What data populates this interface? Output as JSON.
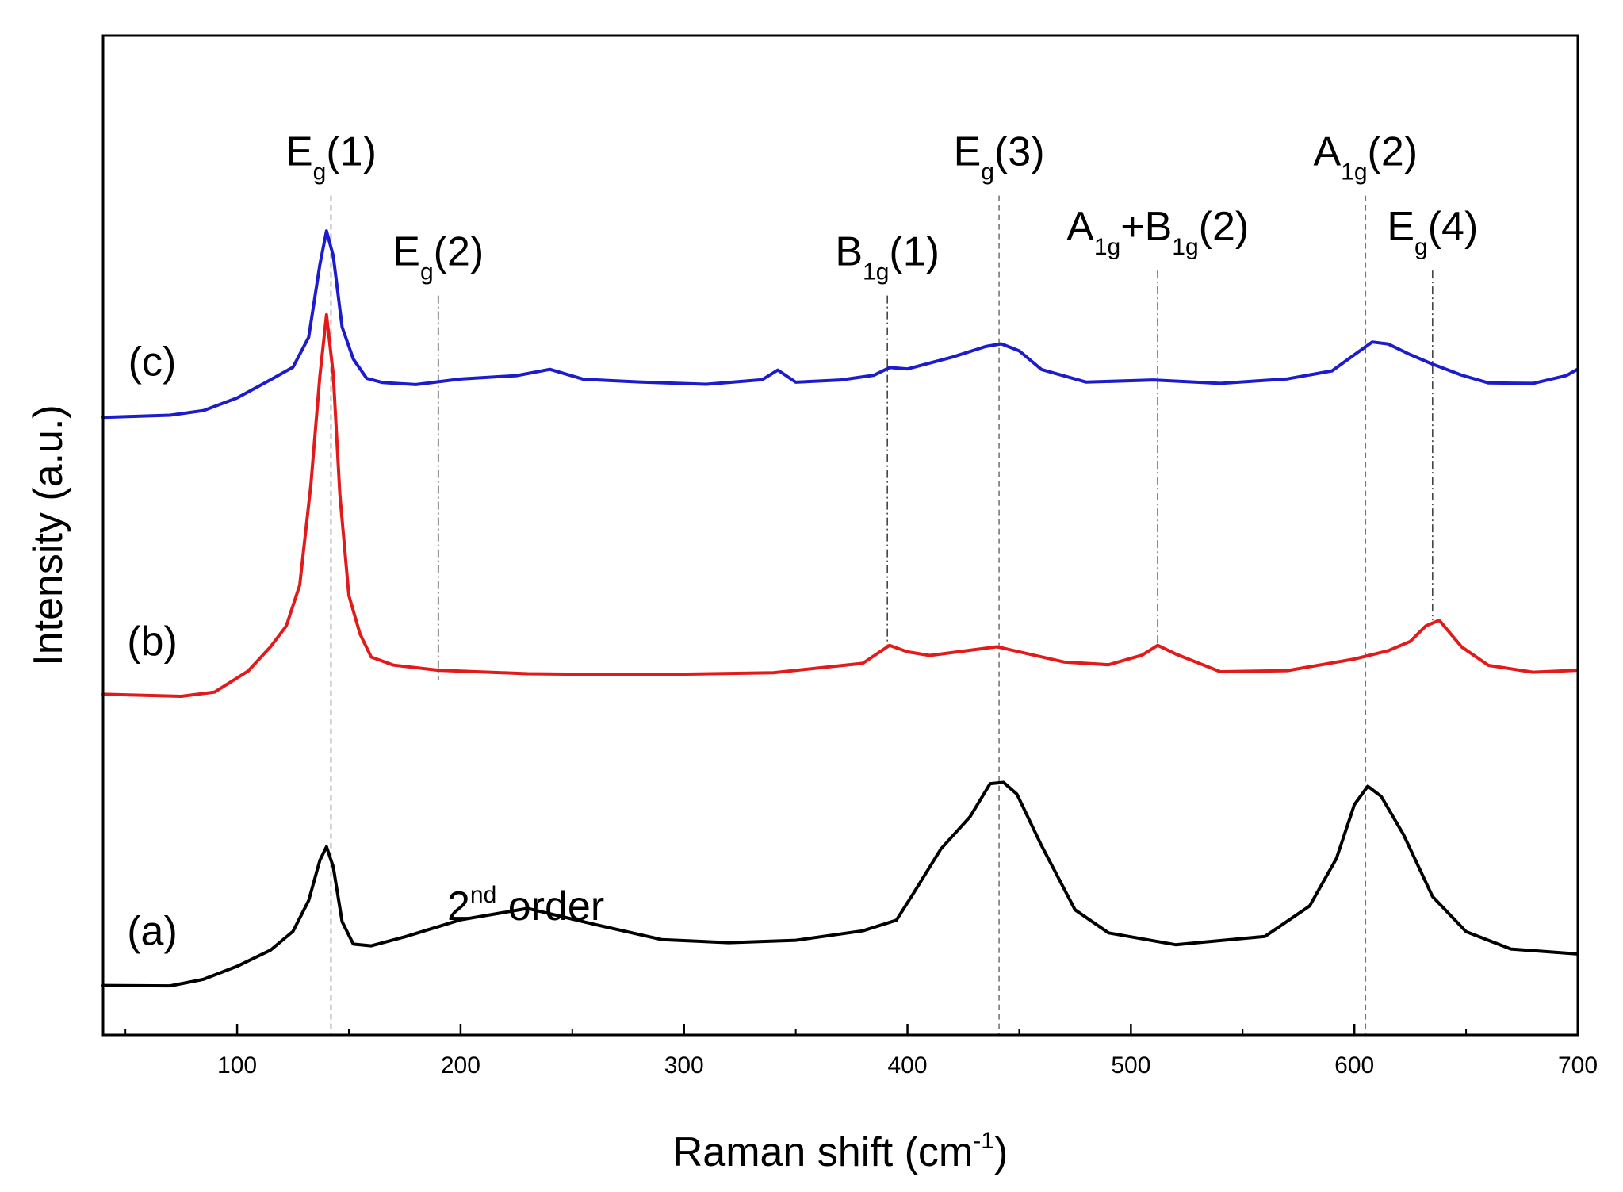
{
  "chart_data": {
    "type": "line",
    "title": "",
    "xlabel": "Raman shift (cm",
    "xlabel_sup": "-1",
    "xlabel_end": ")",
    "ylabel": "Intensity (a.u.)",
    "xlim": [
      40,
      700
    ],
    "ylim": [
      0,
      100
    ],
    "x_ticks": [
      100,
      200,
      300,
      400,
      500,
      600,
      700
    ],
    "x_tick_labels": [
      "100",
      "200",
      "300",
      "400",
      "500",
      "600",
      "700"
    ],
    "y_ticks_labeled": false,
    "grid": false,
    "series": [
      {
        "name": "(a)",
        "label": "(a)",
        "color": "#000000",
        "baseline": 5.0,
        "label_x": 62,
        "label_y": 9,
        "x": [
          40,
          70,
          85,
          100,
          115,
          125,
          132,
          137,
          140,
          143,
          147,
          152,
          160,
          175,
          200,
          230,
          260,
          290,
          320,
          350,
          380,
          395,
          402,
          415,
          428,
          437,
          443,
          449,
          460,
          475,
          490,
          520,
          560,
          580,
          592,
          600,
          606,
          612,
          622,
          635,
          650,
          670,
          700
        ],
        "y": [
          5.0,
          5.0,
          5.5,
          6.8,
          8.5,
          10.5,
          13.5,
          17.5,
          19.0,
          17.0,
          11.5,
          9.0,
          8.8,
          9.8,
          11.5,
          12.5,
          11.0,
          9.5,
          9.3,
          9.6,
          10.5,
          11.5,
          14.0,
          18.5,
          22.0,
          25.0,
          25.3,
          24.0,
          19.0,
          12.5,
          10.2,
          9.2,
          9.8,
          13.0,
          17.5,
          23.0,
          25.0,
          24.0,
          20.0,
          14.0,
          10.5,
          8.5,
          8.0
        ]
      },
      {
        "name": "(b)",
        "label": "(b)",
        "color": "#e31a1a",
        "baseline": 34.0,
        "label_x": 62,
        "label_y": 38,
        "x": [
          40,
          75,
          90,
          105,
          115,
          122,
          128,
          133,
          137,
          140,
          143,
          146,
          150,
          155,
          160,
          170,
          190,
          230,
          280,
          340,
          380,
          392,
          400,
          410,
          440,
          470,
          490,
          505,
          512,
          520,
          540,
          570,
          600,
          615,
          625,
          632,
          638,
          648,
          660,
          680,
          700
        ],
        "y": [
          34.0,
          34.0,
          34.5,
          36.5,
          39.0,
          41.0,
          45.0,
          55.0,
          66.0,
          72.0,
          66.0,
          54.0,
          44.0,
          40.0,
          38.0,
          37.0,
          36.5,
          36.3,
          36.0,
          36.3,
          37.0,
          39.0,
          38.5,
          38.0,
          38.8,
          37.5,
          37.0,
          38.0,
          39.0,
          38.0,
          36.5,
          36.5,
          37.8,
          38.5,
          39.5,
          41.0,
          41.5,
          39.0,
          37.0,
          36.3,
          36.5
        ]
      },
      {
        "name": "(c)",
        "label": "(c)",
        "color": "#1c1ccc",
        "baseline": 62.0,
        "label_x": 62,
        "label_y": 66,
        "x": [
          40,
          70,
          85,
          100,
          115,
          125,
          132,
          137,
          140,
          143,
          147,
          152,
          158,
          165,
          180,
          200,
          225,
          240,
          255,
          280,
          310,
          335,
          342,
          350,
          370,
          385,
          392,
          400,
          420,
          435,
          442,
          450,
          460,
          480,
          510,
          540,
          570,
          590,
          600,
          608,
          615,
          625,
          635,
          648,
          660,
          680,
          695,
          700
        ],
        "y": [
          62.0,
          62.0,
          62.5,
          63.8,
          65.5,
          67.0,
          70.0,
          77.0,
          80.5,
          78.0,
          71.0,
          67.5,
          65.8,
          65.3,
          65.2,
          65.5,
          66.0,
          66.7,
          65.7,
          65.5,
          65.2,
          65.7,
          66.5,
          65.5,
          65.5,
          66.0,
          66.8,
          66.5,
          68.0,
          69.0,
          69.3,
          68.5,
          66.5,
          65.5,
          65.5,
          65.2,
          65.5,
          66.5,
          68.0,
          69.3,
          69.0,
          68.0,
          67.3,
          66.0,
          65.3,
          65.3,
          66.0,
          66.5
        ]
      }
    ],
    "annotations": [
      {
        "id": "eg1",
        "x": 142,
        "type": "dashed",
        "y_top": 84.0,
        "y_bottom": 0.0,
        "label_main": "E",
        "label_sub": "g",
        "label_rest": "(1)"
      },
      {
        "id": "eg2",
        "x": 190,
        "type": "dashdot",
        "y_top": 74.0,
        "y_bottom": 35.5,
        "label_main": "E",
        "label_sub": "g",
        "label_rest": "(2)"
      },
      {
        "id": "b1g1",
        "x": 391,
        "type": "dashdot",
        "y_top": 74.0,
        "y_bottom": 39.0,
        "label_main": "B",
        "label_sub": "1g",
        "label_rest": "(1)"
      },
      {
        "id": "eg3",
        "x": 441,
        "type": "dashed",
        "y_top": 84.0,
        "y_bottom": 0.0,
        "label_main": "E",
        "label_sub": "g",
        "label_rest": "(3)"
      },
      {
        "id": "a1gb1g2",
        "x": 512,
        "type": "dashdot",
        "y_top": 76.5,
        "y_bottom": 39.0,
        "label_main": "A",
        "label_sub": "1g",
        "label_mid": "+B",
        "label_sub2": "1g",
        "label_rest": "(2)"
      },
      {
        "id": "a1g2",
        "x": 605,
        "type": "dashed",
        "y_top": 84.0,
        "y_bottom": 0.0,
        "label_main": "A",
        "label_sub": "1g",
        "label_rest": "(2)"
      },
      {
        "id": "eg4",
        "x": 635,
        "type": "dashdot",
        "y_top": 76.5,
        "y_bottom": 41.5,
        "label_main": "E",
        "label_sub": "g",
        "label_rest": "(4)"
      }
    ],
    "text_annotations": [
      {
        "id": "second-order",
        "x": 194,
        "y": 11.5,
        "main": "2",
        "sup": "nd",
        "rest": " order"
      }
    ]
  }
}
